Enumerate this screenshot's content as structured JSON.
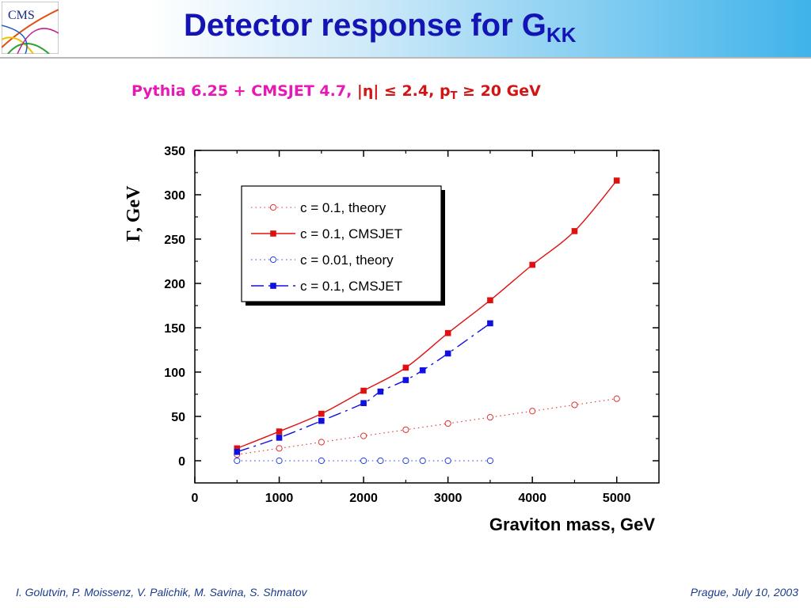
{
  "header": {
    "logo_text": "CMS",
    "title_main": "Detector response for G",
    "title_sub": "KK",
    "colors": {
      "title": "#1414b4",
      "bar_start": "#ffffff",
      "bar_end": "#3fb3ea"
    }
  },
  "subtitle": {
    "part1": "Pythia 6.25 + CMSJET 4.7, ",
    "part2": "|η| ≤ 2.4, p",
    "part2_sub": "T",
    "part3": " ≥ 20 GeV",
    "colors": {
      "part1": "#e619b4",
      "part2": "#d21414"
    }
  },
  "chart_data": {
    "type": "line",
    "title": "",
    "xlabel": "Graviton mass, GeV",
    "ylabel": "Γ, GeV",
    "xlim": [
      0,
      5500
    ],
    "ylim": [
      -25,
      350
    ],
    "x_ticks": [
      0,
      1000,
      2000,
      3000,
      4000,
      5000
    ],
    "y_ticks": [
      0,
      50,
      100,
      150,
      200,
      250,
      300,
      350
    ],
    "grid": false,
    "legend_position": "top-left",
    "series": [
      {
        "name": "c = 0.1, theory",
        "color": "#e03030",
        "marker": "circle-open",
        "line": "dotted",
        "x": [
          500,
          1000,
          1500,
          2000,
          2500,
          3000,
          3500,
          4000,
          4500,
          5000
        ],
        "y": [
          7,
          14,
          21,
          28,
          35,
          42,
          49,
          56,
          63,
          70
        ]
      },
      {
        "name": "c = 0.1, CMSJET",
        "color": "#e01010",
        "marker": "square-filled",
        "line": "solid",
        "x": [
          500,
          1000,
          1500,
          2000,
          2500,
          3000,
          3500,
          4000,
          4500,
          5000
        ],
        "y": [
          14,
          33,
          53,
          79,
          105,
          144,
          181,
          221,
          259,
          316
        ]
      },
      {
        "name": "c = 0.01, theory",
        "color": "#2040e0",
        "marker": "circle-open",
        "line": "dotted",
        "x": [
          500,
          1000,
          1500,
          2000,
          2200,
          2500,
          2700,
          3000,
          3500
        ],
        "y": [
          0,
          0,
          0,
          0,
          0,
          0,
          0,
          0,
          0
        ]
      },
      {
        "name": "c = 0.1, CMSJET",
        "color": "#1010e0",
        "marker": "square-filled",
        "line": "dashdot",
        "x": [
          500,
          1000,
          1500,
          2000,
          2200,
          2500,
          2700,
          3000,
          3500
        ],
        "y": [
          10,
          26,
          45,
          65,
          78,
          91,
          102,
          121,
          155
        ]
      }
    ]
  },
  "footer": {
    "authors": "I. Golutvin, P. Moissenz, V. Palichik, M. Savina, S. Shmatov",
    "venue_date": "Prague, July 10,  2003"
  }
}
